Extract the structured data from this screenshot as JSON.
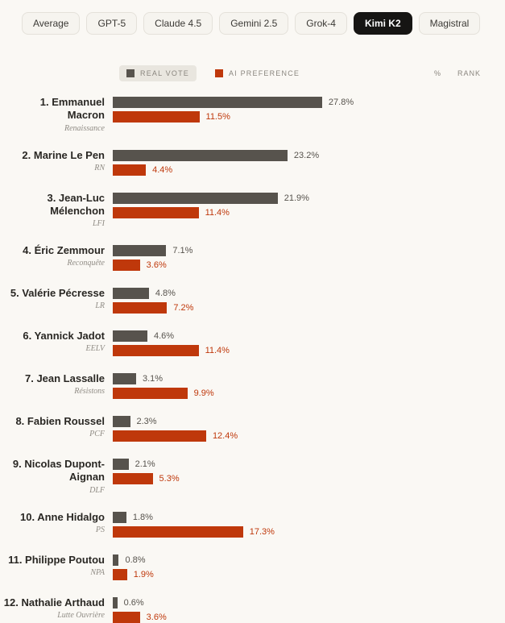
{
  "tabs": [
    {
      "label": "Average",
      "active": false
    },
    {
      "label": "GPT-5",
      "active": false
    },
    {
      "label": "Claude 4.5",
      "active": false
    },
    {
      "label": "Gemini 2.5",
      "active": false
    },
    {
      "label": "Grok-4",
      "active": false
    },
    {
      "label": "Kimi K2",
      "active": true
    },
    {
      "label": "Magistral",
      "active": false
    }
  ],
  "legend": {
    "real_vote_label": "REAL VOTE",
    "ai_preference_label": "AI PREFERENCE",
    "percent_header": "%",
    "rank_header": "RANK"
  },
  "colors": {
    "real_vote": "#57534d",
    "ai_preference": "#bf380b",
    "real_vote_text": "#57534d",
    "ai_preference_text": "#bf380b"
  },
  "chart_data": {
    "type": "bar",
    "orientation": "horizontal",
    "unit": "%",
    "xlim": [
      0,
      28
    ],
    "legend_position": "top",
    "series_names": [
      "REAL VOTE",
      "AI PREFERENCE"
    ],
    "rows": [
      {
        "rank": "1.",
        "name": "Emmanuel Macron",
        "party": "Renaissance",
        "real_vote": 27.8,
        "ai_preference": 11.5
      },
      {
        "rank": "2.",
        "name": "Marine Le Pen",
        "party": "RN",
        "real_vote": 23.2,
        "ai_preference": 4.4
      },
      {
        "rank": "3.",
        "name": "Jean-Luc Mélenchon",
        "party": "LFI",
        "real_vote": 21.9,
        "ai_preference": 11.4
      },
      {
        "rank": "4.",
        "name": "Éric Zemmour",
        "party": "Reconquête",
        "real_vote": 7.1,
        "ai_preference": 3.6
      },
      {
        "rank": "5.",
        "name": "Valérie Pécresse",
        "party": "LR",
        "real_vote": 4.8,
        "ai_preference": 7.2
      },
      {
        "rank": "6.",
        "name": "Yannick Jadot",
        "party": "EELV",
        "real_vote": 4.6,
        "ai_preference": 11.4
      },
      {
        "rank": "7.",
        "name": "Jean Lassalle",
        "party": "Résistons",
        "real_vote": 3.1,
        "ai_preference": 9.9
      },
      {
        "rank": "8.",
        "name": "Fabien Roussel",
        "party": "PCF",
        "real_vote": 2.3,
        "ai_preference": 12.4
      },
      {
        "rank": "9.",
        "name": "Nicolas Dupont-Aignan",
        "party": "DLF",
        "real_vote": 2.1,
        "ai_preference": 5.3
      },
      {
        "rank": "10.",
        "name": "Anne Hidalgo",
        "party": "PS",
        "real_vote": 1.8,
        "ai_preference": 17.3
      },
      {
        "rank": "11.",
        "name": "Philippe Poutou",
        "party": "NPA",
        "real_vote": 0.8,
        "ai_preference": 1.9
      },
      {
        "rank": "12.",
        "name": "Nathalie Arthaud",
        "party": "Lutte Ouvrière",
        "real_vote": 0.6,
        "ai_preference": 3.6
      }
    ]
  }
}
